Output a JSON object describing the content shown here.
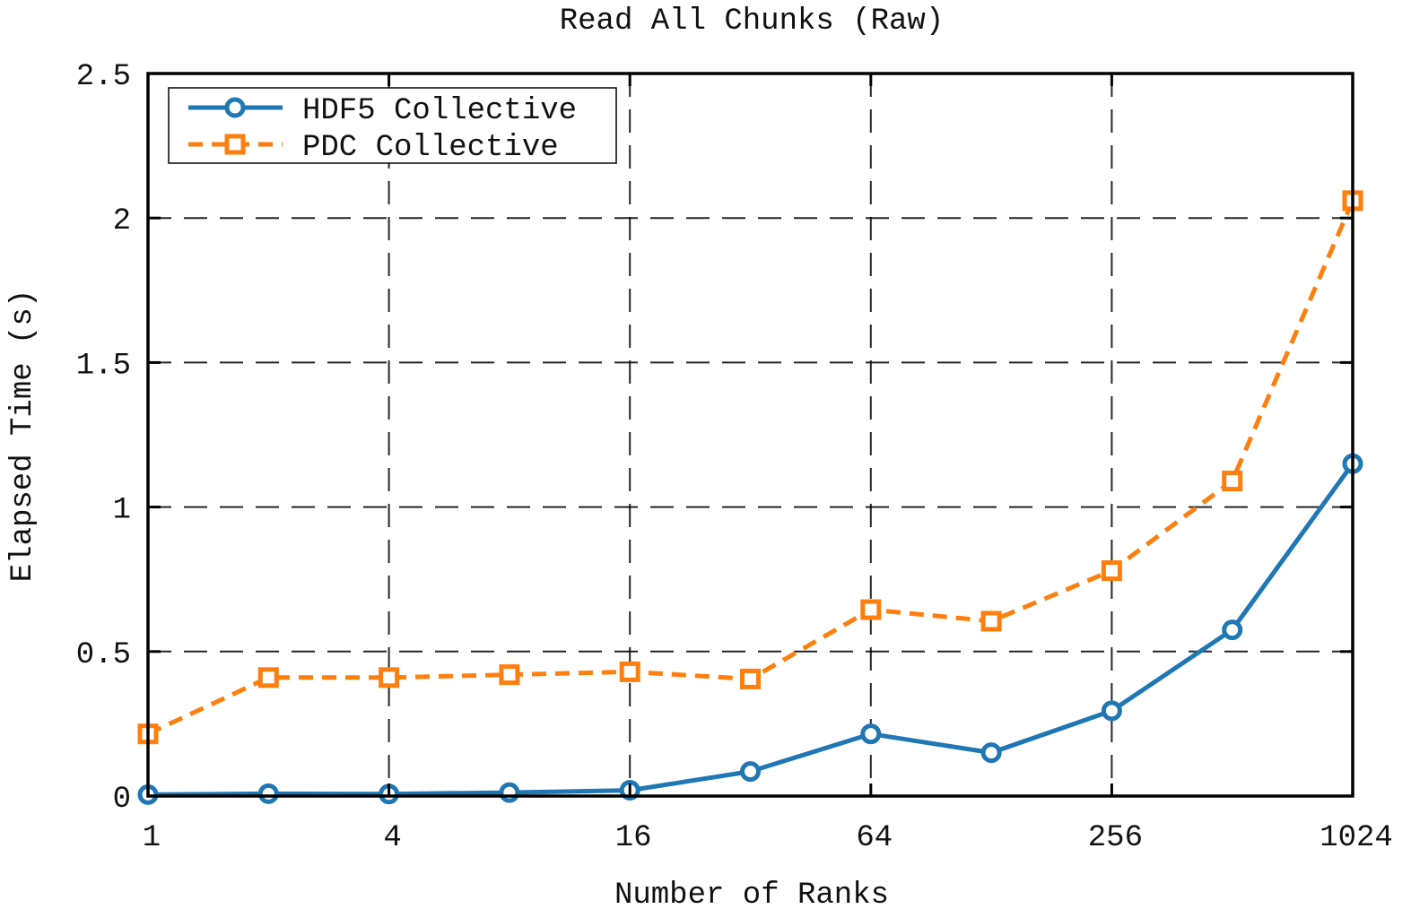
{
  "chart_data": {
    "type": "line",
    "title": "Read All Chunks (Raw)",
    "xlabel": "Number of Ranks",
    "ylabel": "Elapsed Time (s)",
    "x_scale": "log2",
    "x": [
      1,
      2,
      4,
      8,
      16,
      32,
      64,
      128,
      256,
      512,
      1024
    ],
    "x_ticks": [
      1,
      4,
      16,
      64,
      256,
      1024
    ],
    "x_tick_labels": [
      "1",
      "4",
      "16",
      "64",
      "256",
      "1024"
    ],
    "y_ticks": [
      0,
      0.5,
      1,
      1.5,
      2,
      2.5
    ],
    "y_tick_labels": [
      "0",
      "0.5",
      "1",
      "1.5",
      "2",
      "2.5"
    ],
    "xlim": [
      1,
      1024
    ],
    "ylim": [
      0,
      2.5
    ],
    "grid": true,
    "legend_position": "top-left",
    "series": [
      {
        "name": "HDF5 Collective",
        "color": "#1f77b4",
        "line_style": "solid",
        "marker": "circle",
        "values": [
          0.005,
          0.008,
          0.007,
          0.012,
          0.02,
          0.085,
          0.215,
          0.15,
          0.295,
          0.575,
          1.15
        ]
      },
      {
        "name": "PDC Collective",
        "color": "#ff7f0e",
        "line_style": "dashed",
        "marker": "square",
        "values": [
          0.215,
          0.41,
          0.41,
          0.42,
          0.43,
          0.405,
          0.645,
          0.605,
          0.78,
          1.09,
          2.06
        ]
      }
    ]
  }
}
